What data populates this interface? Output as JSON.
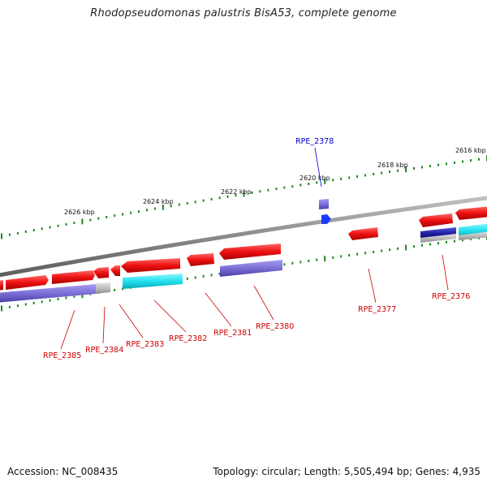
{
  "title": "Rhodopseudomonas palustris BisA53, complete genome",
  "footer": {
    "accession": "Accession: NC_008435",
    "summary": "Topology: circular; Length: 5,505,494 bp; Genes: 4,935"
  },
  "scale_labels": [
    "2616 kbp",
    "2618 kbp",
    "2620 kbp",
    "2622 kbp",
    "2624 kbp",
    "2626 kbp"
  ],
  "gene_labels": [
    {
      "name": "RPE_2378",
      "color": "#0000cc"
    },
    {
      "name": "RPE_2377",
      "color": "#cc0000"
    },
    {
      "name": "RPE_2376",
      "color": "#cc0000"
    },
    {
      "name": "RPE_2380",
      "color": "#cc0000"
    },
    {
      "name": "RPE_2381",
      "color": "#cc0000"
    },
    {
      "name": "RPE_2382",
      "color": "#cc0000"
    },
    {
      "name": "RPE_2383",
      "color": "#cc0000"
    },
    {
      "name": "RPE_2384",
      "color": "#cc0000"
    },
    {
      "name": "RPE_2385",
      "color": "#cc0000"
    }
  ],
  "colors": {
    "backbone": "#8a8a8a",
    "forward_gene": "#ee1111",
    "cog_purple": "#7b6fd6",
    "cog_cyan": "#22e0ee",
    "cog_gray": "#bdbdbd",
    "cog_navy": "#1a1a99",
    "rna_gene": "#1a3cff",
    "tick": "#1a8a1a"
  }
}
